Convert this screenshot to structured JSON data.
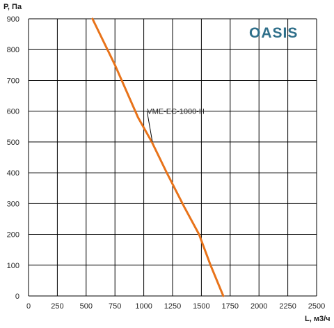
{
  "brand": {
    "logo_text": "OASIS",
    "color": "#2f6f8a"
  },
  "chart_data": {
    "type": "line",
    "title": "",
    "xlabel": "L, м3/ч",
    "ylabel": "P, Па",
    "xlim": [
      0,
      2500
    ],
    "ylim": [
      0,
      900
    ],
    "xticks": [
      0,
      250,
      500,
      750,
      1000,
      1250,
      1500,
      1750,
      2000,
      2250,
      2500
    ],
    "yticks": [
      0,
      100,
      200,
      300,
      400,
      500,
      600,
      700,
      800,
      900
    ],
    "grid": true,
    "series": [
      {
        "name": "VME-EC-1000-H",
        "color": "#e8731a",
        "x": [
          555,
          750,
          950,
          1070,
          1200,
          1350,
          1480,
          1580,
          1690
        ],
        "y": [
          900,
          750,
          580,
          500,
          400,
          290,
          200,
          100,
          0
        ]
      }
    ],
    "annotation": {
      "text": "VME-EC-1000-H",
      "x": 1300,
      "y": 600,
      "point_x": 1075,
      "point_y": 500
    }
  }
}
